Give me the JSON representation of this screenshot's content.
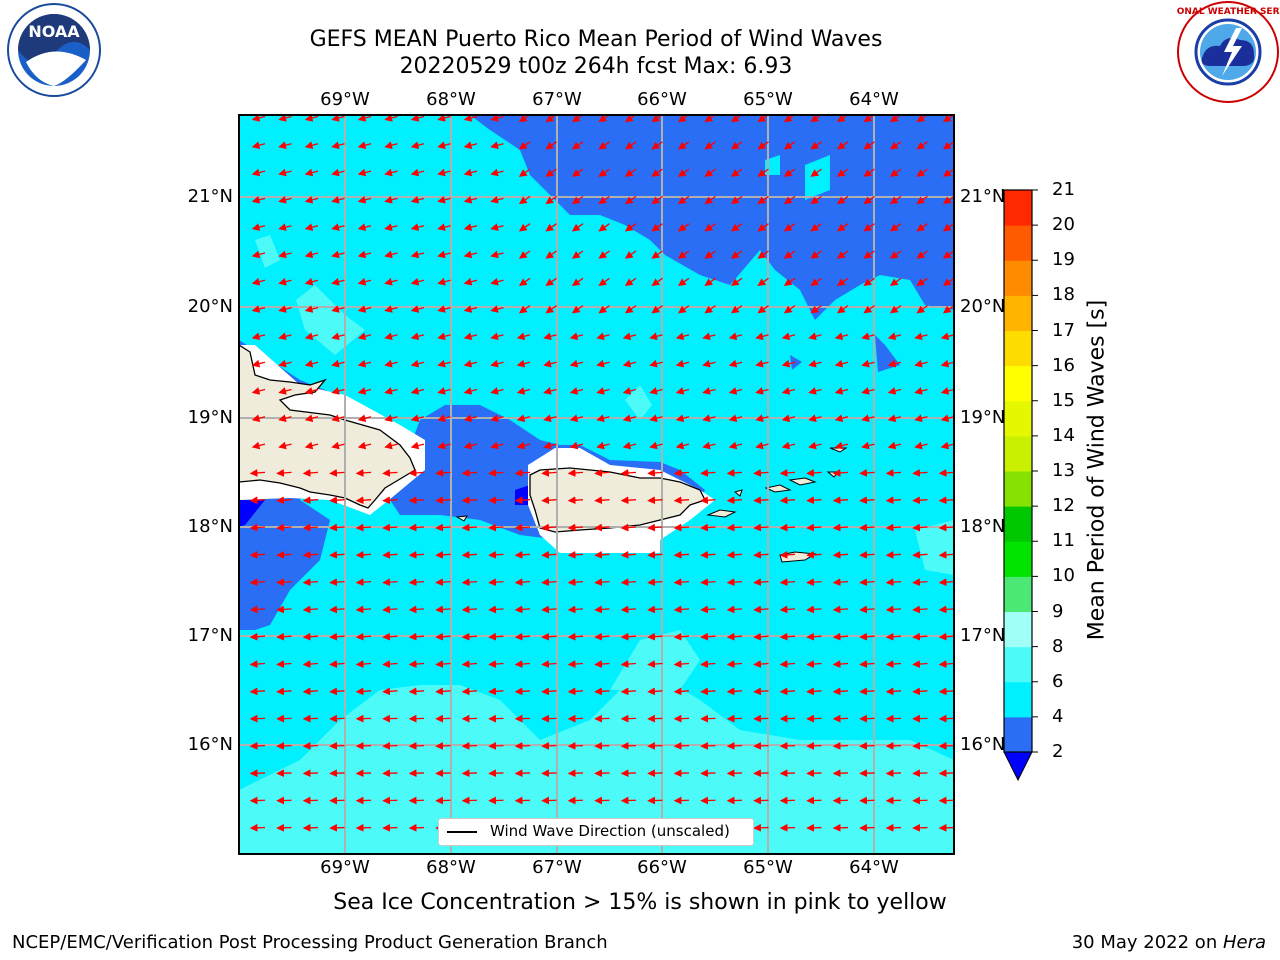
{
  "title": {
    "line1": "GEFS MEAN Puerto Rico Mean Period of Wind Waves",
    "line2": "20220529 t00z 264h fcst   Max: 6.93"
  },
  "map": {
    "lon_labels": [
      "69°W",
      "68°W",
      "67°W",
      "66°W",
      "65°W",
      "64°W"
    ],
    "lat_labels": [
      "21°N",
      "20°N",
      "19°N",
      "18°N",
      "17°N",
      "16°N"
    ],
    "legend": "Wind Wave Direction (unscaled)",
    "arrow_color": "#ff0000",
    "land_color": "#efecdc"
  },
  "colorbar": {
    "label": "Mean Period of Wind Waves [s]",
    "ticks": [
      "2",
      "4",
      "6",
      "8",
      "9",
      "10",
      "11",
      "12",
      "13",
      "14",
      "15",
      "16",
      "17",
      "18",
      "19",
      "20",
      "21"
    ],
    "colors": [
      "#2a6ef5",
      "#00f0ff",
      "#4cfbf7",
      "#a0fff7",
      "#4ce876",
      "#00e400",
      "#00c800",
      "#86e200",
      "#c8f000",
      "#e6f800",
      "#ffff00",
      "#ffdc00",
      "#ffb400",
      "#ff8c00",
      "#ff5a00",
      "#ff2800",
      "#ff0000"
    ],
    "under_color": "#0000ff"
  },
  "subtitle": "Sea Ice Concentration > 15% is shown in pink to yellow",
  "footer": {
    "left": "NCEP/EMC/Verification Post Processing Product Generation Branch",
    "date": "30 May 2022 on ",
    "machine": "Hera"
  },
  "logos": {
    "left": "NOAA",
    "right": "NATIONAL WEATHER SERVICE"
  }
}
